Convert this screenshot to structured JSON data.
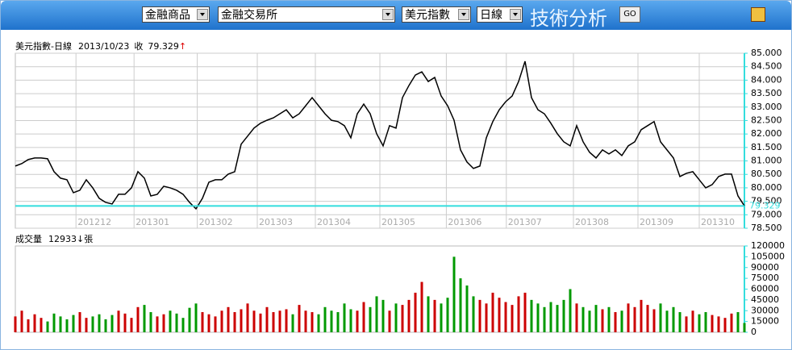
{
  "toolbar": {
    "selects": [
      "金融商品",
      "金融交易所",
      "美元指數",
      "日線"
    ],
    "title": "技術分析",
    "button": "GO"
  },
  "chart_data": [
    {
      "type": "line",
      "title": "美元指數-日線",
      "date": "2013/10/23",
      "close_label": "收",
      "close": 79.329,
      "change_arrow": "↑",
      "color": "#000000",
      "ref_color": "#33dddd",
      "arrow_color": "#dd0000",
      "grid": true,
      "xlim": [
        0,
        113
      ],
      "xticks": [
        {
          "value": 9.4,
          "label": "201212"
        },
        {
          "value": 18.4,
          "label": "201301"
        },
        {
          "value": 28.2,
          "label": "201302"
        },
        {
          "value": 37.5,
          "label": "201303"
        },
        {
          "value": 46.5,
          "label": "201304"
        },
        {
          "value": 56.5,
          "label": "201305"
        },
        {
          "value": 66.8,
          "label": "201306"
        },
        {
          "value": 76.1,
          "label": "201307"
        },
        {
          "value": 86.5,
          "label": "201308"
        },
        {
          "value": 96.5,
          "label": "201309"
        },
        {
          "value": 106,
          "label": "201310"
        }
      ],
      "ylim": [
        78.5,
        85
      ],
      "yticks": [
        {
          "value": 78.5,
          "label": "78.500"
        },
        {
          "value": 79,
          "label": "79.000"
        },
        {
          "value": 79.5,
          "label": "79.500"
        },
        {
          "value": 80,
          "label": "80.000"
        },
        {
          "value": 80.5,
          "label": "80.500"
        },
        {
          "value": 81,
          "label": "81.000"
        },
        {
          "value": 81.5,
          "label": "81.500"
        },
        {
          "value": 82,
          "label": "82.000"
        },
        {
          "value": 82.5,
          "label": "82.500"
        },
        {
          "value": 83,
          "label": "83.000"
        },
        {
          "value": 83.5,
          "label": "83.500"
        },
        {
          "value": 84,
          "label": "84.000"
        },
        {
          "value": 84.5,
          "label": "84.500"
        },
        {
          "value": 85,
          "label": "85.000"
        }
      ],
      "values": [
        80.81,
        80.9,
        81.05,
        81.11,
        81.11,
        81.08,
        80.6,
        80.36,
        80.3,
        79.82,
        79.91,
        80.3,
        80.0,
        79.61,
        79.46,
        79.4,
        79.76,
        79.76,
        80.0,
        80.6,
        80.36,
        79.7,
        79.76,
        80.06,
        80.0,
        79.91,
        79.76,
        79.46,
        79.22,
        79.61,
        80.21,
        80.3,
        80.3,
        80.51,
        80.6,
        81.62,
        81.92,
        82.22,
        82.4,
        82.51,
        82.6,
        82.75,
        82.9,
        82.6,
        82.75,
        83.05,
        83.35,
        83.05,
        82.75,
        82.51,
        82.46,
        82.31,
        81.86,
        82.75,
        83.11,
        82.75,
        82.01,
        81.56,
        82.31,
        82.22,
        83.35,
        83.8,
        84.19,
        84.31,
        83.95,
        84.1,
        83.41,
        83.05,
        82.51,
        81.41,
        80.96,
        80.72,
        80.81,
        81.86,
        82.46,
        82.9,
        83.2,
        83.41,
        83.95,
        84.7,
        83.35,
        82.9,
        82.75,
        82.4,
        82.01,
        81.71,
        81.56,
        82.31,
        81.71,
        81.32,
        81.11,
        81.41,
        81.26,
        81.41,
        81.2,
        81.56,
        81.71,
        82.16,
        82.31,
        82.46,
        81.71,
        81.41,
        81.11,
        80.42,
        80.54,
        80.6,
        80.3,
        80.0,
        80.12,
        80.42,
        80.51,
        80.51,
        79.7,
        79.329
      ]
    },
    {
      "type": "bar",
      "title": "成交量",
      "last_volume": 12933,
      "change_arrow": "↓",
      "unit": "張",
      "up_color": "#cc0000",
      "down_color": "#009900",
      "arrow_color": "#000000",
      "ref_color": "#33dddd",
      "xlim": [
        0,
        113
      ],
      "ylim": [
        0,
        120000
      ],
      "yticks": [
        0,
        15000,
        30000,
        45000,
        60000,
        75000,
        90000,
        105000,
        120000
      ],
      "values": [
        22000,
        30000,
        18000,
        25000,
        20000,
        15000,
        26000,
        22000,
        18000,
        24000,
        28000,
        20000,
        22000,
        25000,
        18000,
        24000,
        30000,
        26000,
        20000,
        35000,
        38000,
        28000,
        22000,
        25000,
        30000,
        26000,
        20000,
        34000,
        40000,
        28000,
        25000,
        22000,
        30000,
        35000,
        28000,
        32000,
        40000,
        30000,
        26000,
        35000,
        28000,
        30000,
        32000,
        25000,
        38000,
        30000,
        28000,
        25000,
        35000,
        30000,
        28000,
        40000,
        32000,
        30000,
        42000,
        35000,
        50000,
        45000,
        30000,
        40000,
        38000,
        45000,
        55000,
        70000,
        50000,
        45000,
        40000,
        48000,
        105000,
        75000,
        65000,
        50000,
        45000,
        40000,
        55000,
        48000,
        42000,
        38000,
        50000,
        55000,
        45000,
        40000,
        35000,
        42000,
        38000,
        45000,
        60000,
        40000,
        35000,
        30000,
        38000,
        32000,
        35000,
        28000,
        30000,
        40000,
        35000,
        45000,
        38000,
        32000,
        40000,
        30000,
        35000,
        28000,
        22000,
        30000,
        25000,
        28000,
        24000,
        22000,
        20000,
        26000,
        28000,
        12933
      ]
    }
  ]
}
